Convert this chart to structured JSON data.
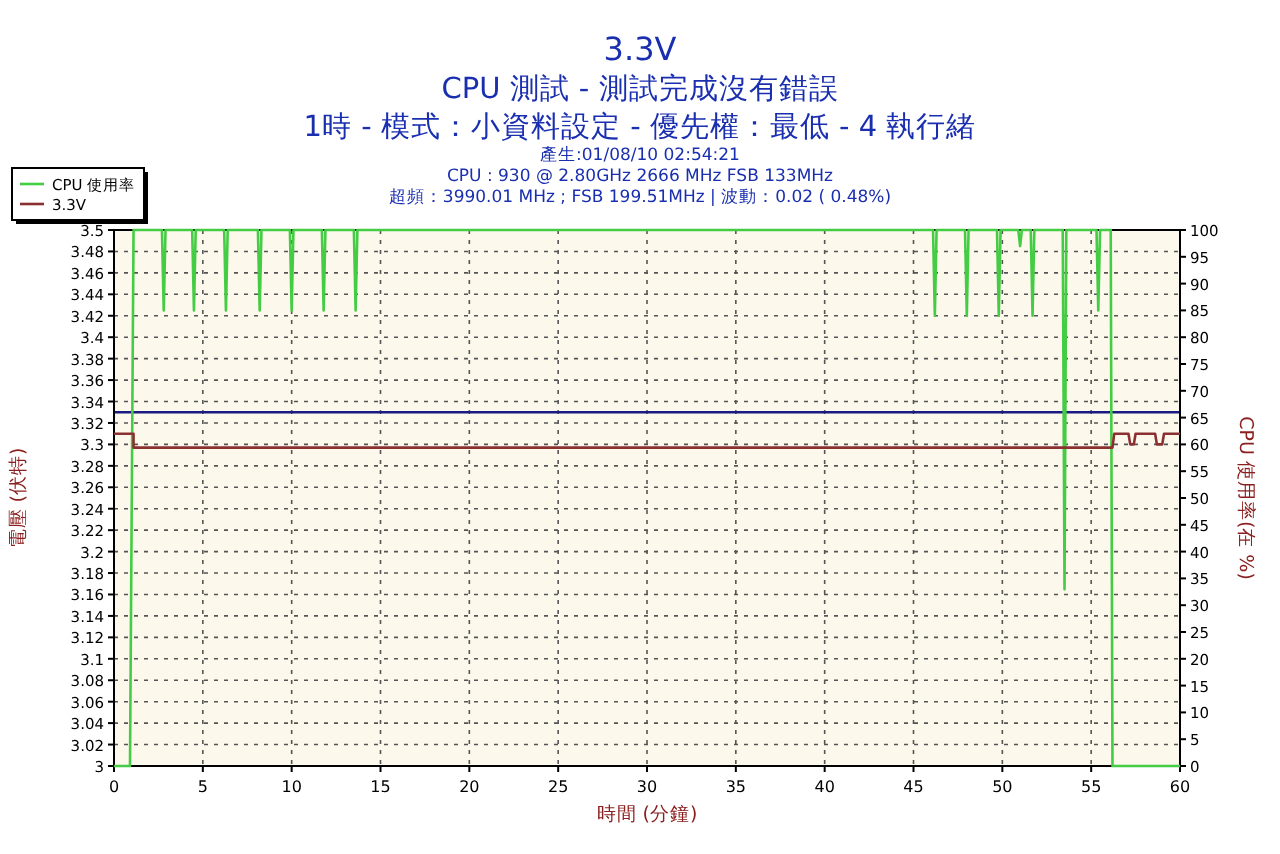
{
  "chart_data": {
    "type": "line",
    "title": "3.3V",
    "subtitle": "CPU 測試 - 測試完成沒有錯誤\n1時 - 模式：小資料設定 - 優先權：最低 - 4 執行緒",
    "annotations": [
      "產生:01/08/10 02:54:21",
      "CPU : 930 @ 2.80GHz 2666 MHz FSB 133MHz",
      "超頻：3990.01 MHz ; FSB 199.51MHz | 波動：0.02 ( 0.48%)"
    ],
    "xlabel": "時間 (分鐘)",
    "ylabel": "電壓 (伏特)",
    "y2label": "CPU 使用率(在 %)",
    "xlim": [
      0,
      60
    ],
    "xticks": [
      0,
      5,
      10,
      15,
      20,
      25,
      30,
      35,
      40,
      45,
      50,
      55,
      60
    ],
    "ylim": [
      3,
      3.5
    ],
    "yticks": [
      3,
      3.02,
      3.04,
      3.06,
      3.08,
      3.1,
      3.12,
      3.14,
      3.16,
      3.18,
      3.2,
      3.22,
      3.24,
      3.26,
      3.28,
      3.3,
      3.32,
      3.34,
      3.36,
      3.38,
      3.4,
      3.42,
      3.44,
      3.46,
      3.48,
      3.5
    ],
    "y2lim": [
      0,
      100
    ],
    "y2ticks": [
      0,
      5,
      10,
      15,
      20,
      25,
      30,
      35,
      40,
      45,
      50,
      55,
      60,
      65,
      70,
      75,
      80,
      85,
      90,
      95,
      100
    ],
    "grid": true,
    "legend": "top left",
    "ref_lines": [
      {
        "axis": "y",
        "value": 3.33,
        "color": "#1a1a80"
      }
    ],
    "series": [
      {
        "name": "CPU 使用率",
        "color": "#44cc44",
        "axis": "y2",
        "x": [
          0,
          0.9,
          1.1,
          2.7,
          2.8,
          2.9,
          4.4,
          4.5,
          4.6,
          6.2,
          6.3,
          6.4,
          8.1,
          8.2,
          8.3,
          9.9,
          10.0,
          10.1,
          11.7,
          11.8,
          11.9,
          13.5,
          13.6,
          13.7,
          46.1,
          46.2,
          46.3,
          47.9,
          48.0,
          48.1,
          49.7,
          49.8,
          49.9,
          50.9,
          51.0,
          51.1,
          51.6,
          51.7,
          51.8,
          53.4,
          53.5,
          53.6,
          55.3,
          55.4,
          55.5,
          56.1,
          56.2,
          60
        ],
        "values": [
          0,
          0,
          100,
          100,
          85,
          100,
          100,
          85,
          100,
          100,
          85,
          100,
          100,
          85,
          100,
          100,
          85,
          100,
          100,
          85,
          100,
          100,
          85,
          100,
          100,
          84,
          100,
          100,
          84,
          100,
          100,
          84,
          100,
          100,
          97,
          100,
          100,
          84,
          100,
          100,
          33,
          100,
          100,
          85,
          100,
          100,
          0,
          0
        ]
      },
      {
        "name": "3.3V",
        "color": "#8b3030",
        "x": [
          0,
          1.1,
          1.1,
          56.2,
          56.3,
          57.1,
          57.2,
          57.4,
          57.5,
          58.6,
          58.7,
          59.0,
          59.1,
          60
        ],
        "values": [
          3.31,
          3.31,
          3.297,
          3.297,
          3.31,
          3.31,
          3.3,
          3.3,
          3.31,
          3.31,
          3.3,
          3.3,
          3.31,
          3.31
        ]
      }
    ]
  }
}
